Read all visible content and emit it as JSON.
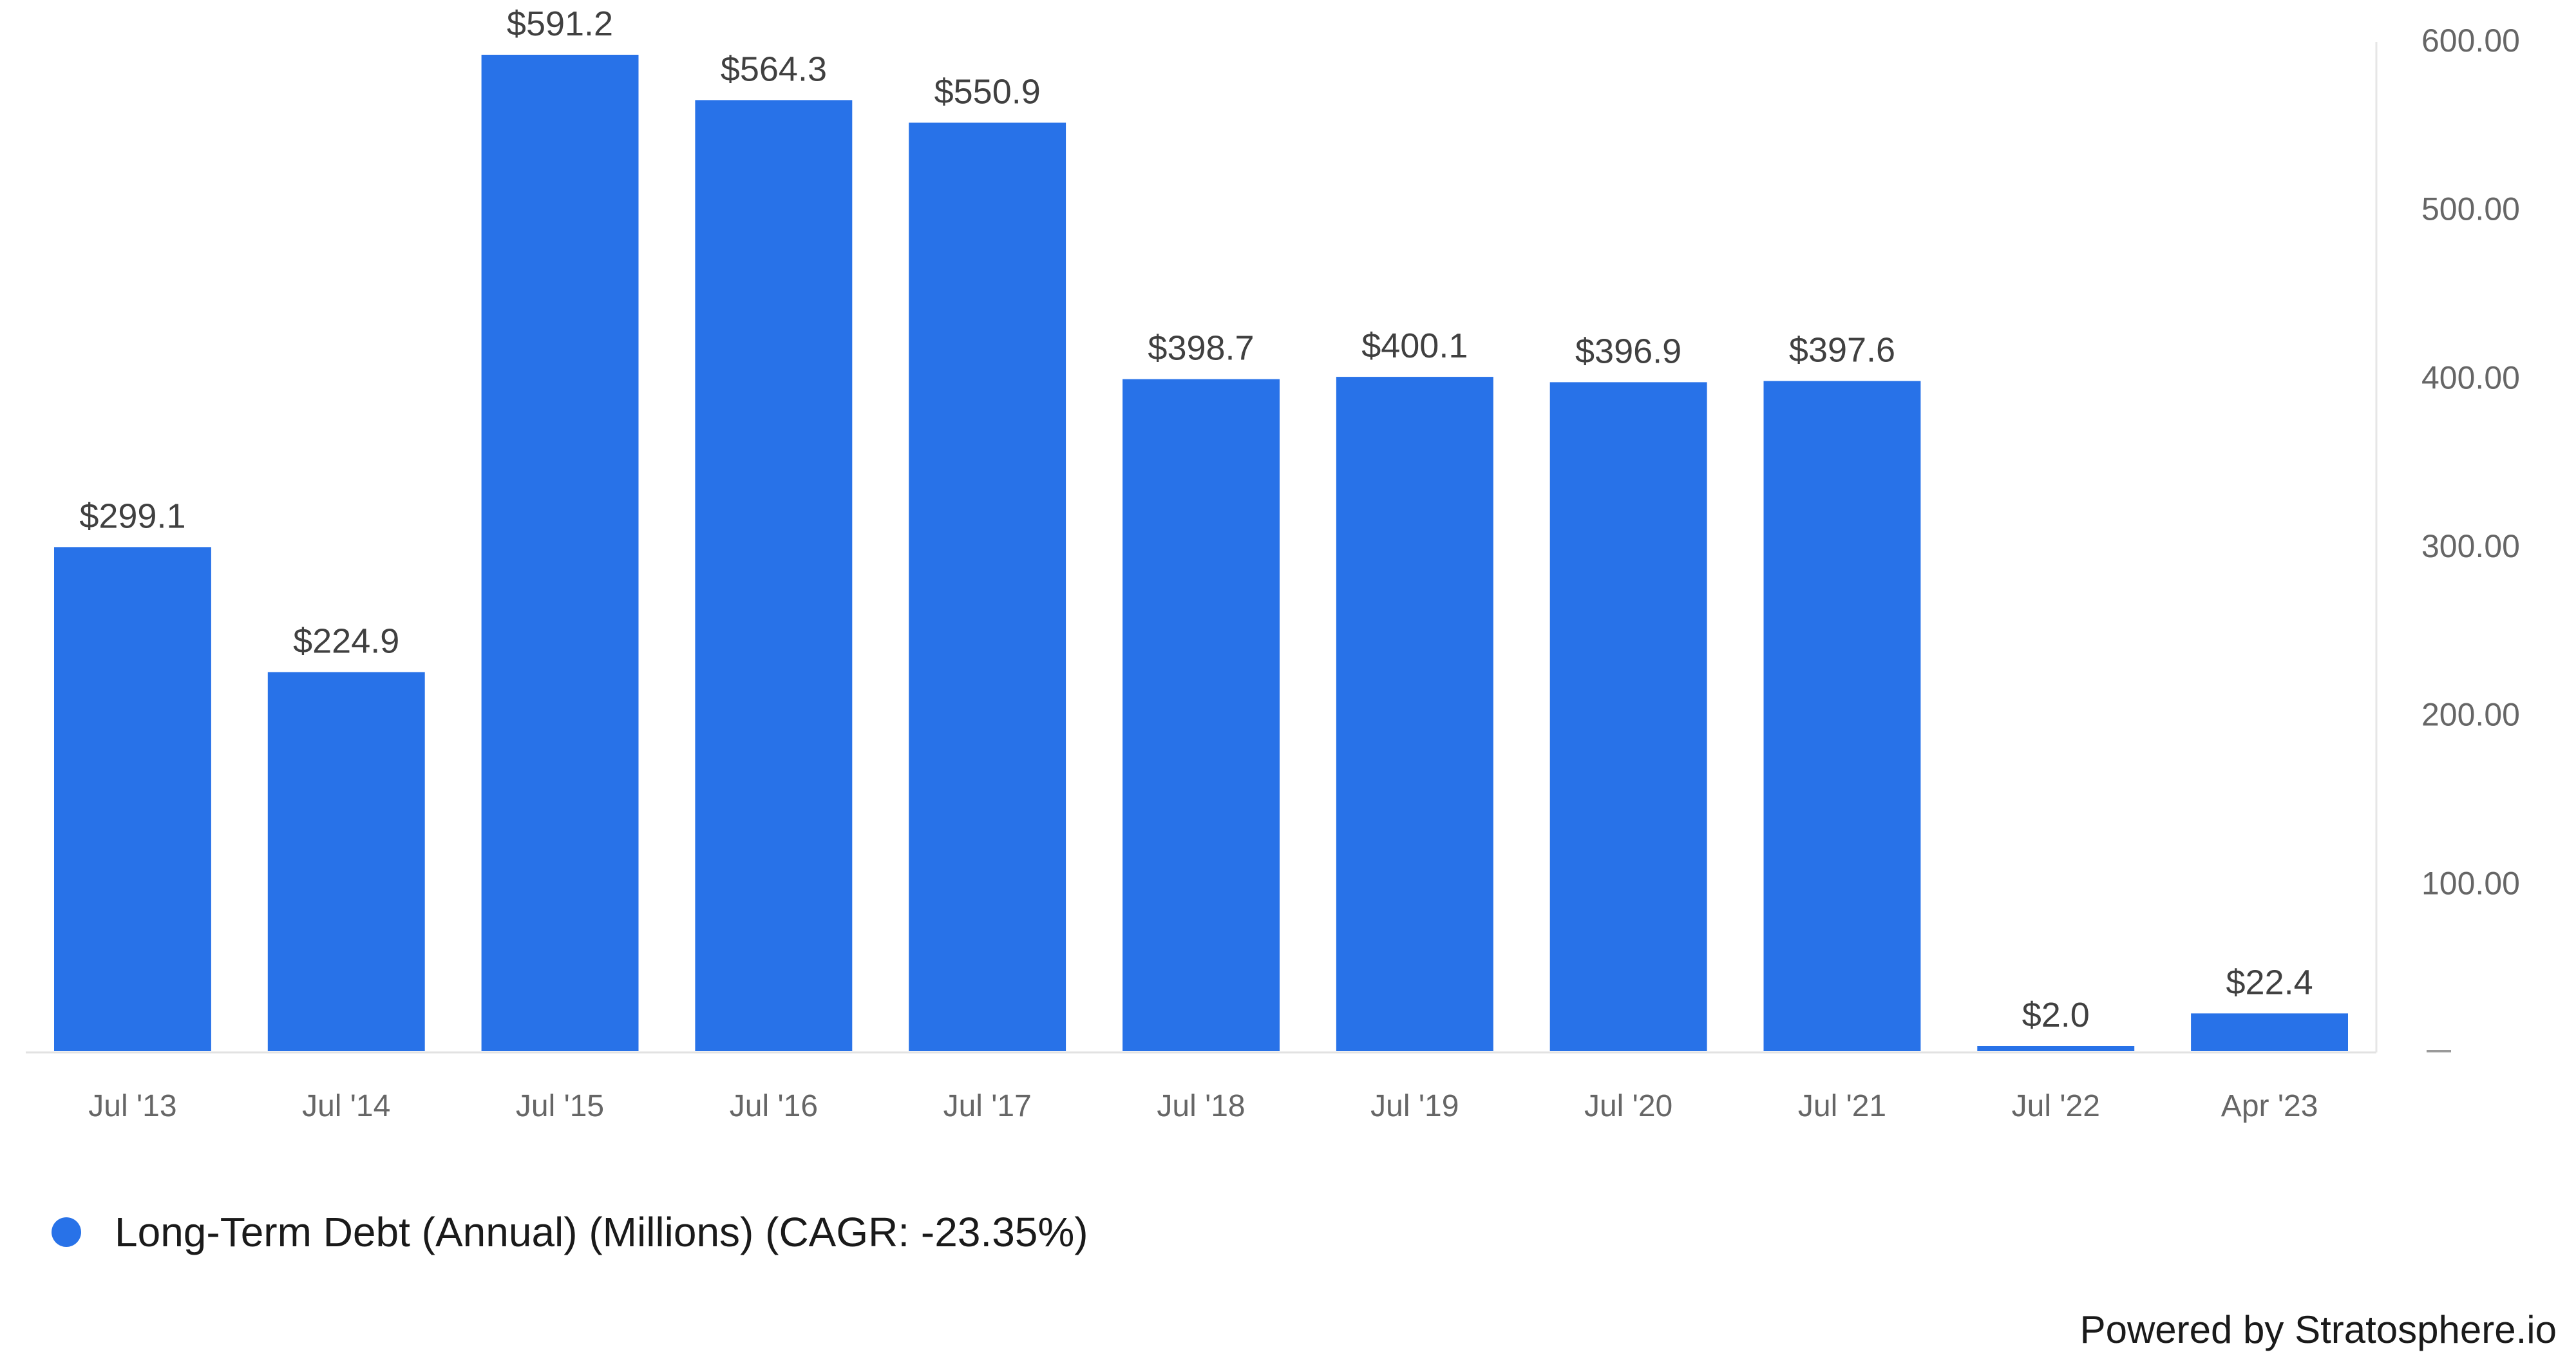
{
  "chart_data": {
    "type": "bar",
    "categories": [
      "Jul '13",
      "Jul '14",
      "Jul '15",
      "Jul '16",
      "Jul '17",
      "Jul '18",
      "Jul '19",
      "Jul '20",
      "Jul '21",
      "Jul '22",
      "Apr '23"
    ],
    "series": [
      {
        "name": "Long-Term Debt (Annual) (Millions) (CAGR: -23.35%)",
        "values": [
          299.1,
          224.9,
          591.2,
          564.3,
          550.9,
          398.7,
          400.1,
          396.9,
          397.6,
          2.0,
          22.4
        ],
        "labels": [
          "$299.1",
          "$224.9",
          "$591.2",
          "$564.3",
          "$550.9",
          "$398.7",
          "$400.1",
          "$396.9",
          "$397.6",
          "$2.0",
          "$22.4"
        ]
      }
    ],
    "ylim": [
      0,
      600
    ],
    "yticks": [
      0,
      100,
      200,
      300,
      400,
      500,
      600
    ],
    "ytick_labels": [
      "",
      "100.00",
      "200.00",
      "300.00",
      "400.00",
      "500.00",
      "600.00"
    ],
    "y_axis_position": "right",
    "grid": false,
    "legend_position": "bottom-left",
    "bar_color": "#2872E8"
  },
  "legend": {
    "label": "Long-Term Debt (Annual) (Millions) (CAGR: -23.35%)",
    "color": "#2872E8"
  },
  "footer": {
    "credit": "Powered by Stratosphere.io"
  }
}
